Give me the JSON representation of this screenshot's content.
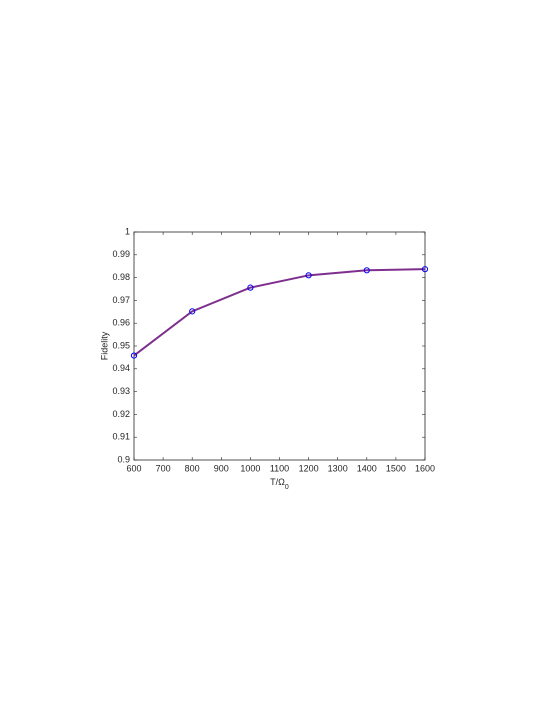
{
  "chart_data": {
    "type": "line",
    "xlabel": "T/Ω",
    "xlabel_subscript": "0",
    "ylabel": "Fidelity",
    "x": [
      600,
      800,
      1000,
      1200,
      1400,
      1600
    ],
    "series": [
      {
        "color": "#7e2f8e",
        "marker_color": "#0000ff",
        "values": [
          0.9458,
          0.9652,
          0.9756,
          0.981,
          0.9832,
          0.9837
        ]
      }
    ],
    "xlim": [
      600,
      1600
    ],
    "xticks": [
      600,
      700,
      800,
      900,
      1000,
      1100,
      1200,
      1300,
      1400,
      1500,
      1600
    ],
    "ylim": [
      0.9,
      1
    ],
    "yticks": [
      0.9,
      0.91,
      0.92,
      0.93,
      0.94,
      0.95,
      0.96,
      0.97,
      0.98,
      0.99,
      1
    ],
    "grid": false
  }
}
